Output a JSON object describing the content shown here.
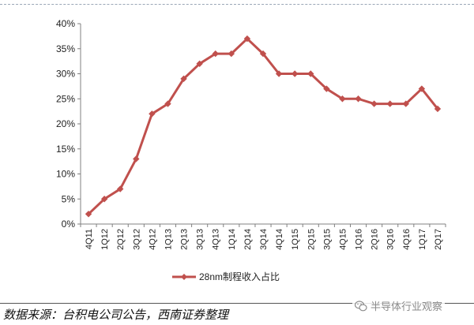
{
  "chart_data": {
    "type": "line",
    "categories": [
      "4Q11",
      "1Q12",
      "2Q12",
      "3Q12",
      "4Q12",
      "1Q13",
      "2Q13",
      "3Q13",
      "4Q13",
      "1Q14",
      "2Q14",
      "3Q14",
      "4Q14",
      "1Q15",
      "2Q15",
      "3Q15",
      "4Q15",
      "1Q16",
      "2Q16",
      "3Q16",
      "4Q16",
      "1Q17",
      "2Q17"
    ],
    "series": [
      {
        "name": "28nm制程收入占比",
        "values": [
          2,
          5,
          7,
          13,
          22,
          24,
          29,
          32,
          34,
          34,
          37,
          34,
          30,
          30,
          30,
          27,
          25,
          25,
          24,
          24,
          24,
          27,
          23
        ]
      }
    ],
    "yticks": [
      "0%",
      "5%",
      "10%",
      "15%",
      "20%",
      "25%",
      "30%",
      "35%",
      "40%"
    ],
    "ylim": [
      0,
      40
    ],
    "grid": false,
    "legend_position": "bottom",
    "line_color": "#c0504d"
  },
  "footer": {
    "source": "数据来源：台积电公司公告，西南证券整理",
    "watermark": "半导体行业观察",
    "watermark_icon": "wechat-icon"
  }
}
